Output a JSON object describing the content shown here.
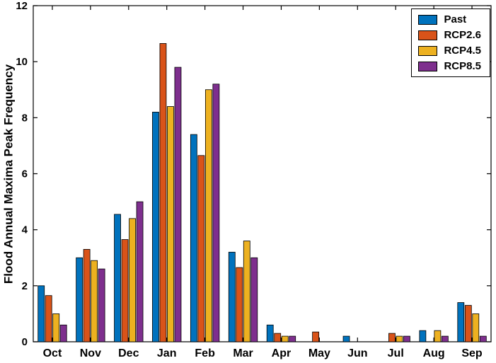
{
  "chart_data": {
    "type": "bar",
    "title": "",
    "xlabel": "",
    "ylabel": "Flood Annual Maxima Peak Frequency",
    "ylim": [
      0,
      12
    ],
    "yticks": [
      0,
      2,
      4,
      6,
      8,
      10,
      12
    ],
    "grid": false,
    "axis_color": "#000000",
    "background": "#ffffff",
    "legend": {
      "position": "top-right",
      "entries": [
        "Past",
        "RCP2.6",
        "RCP4.5",
        "RCP8.5"
      ]
    },
    "categories": [
      "Oct",
      "Nov",
      "Dec",
      "Jan",
      "Feb",
      "Mar",
      "Apr",
      "May",
      "Jun",
      "Jul",
      "Aug",
      "Sep"
    ],
    "series": [
      {
        "name": "Past",
        "color": "#0072BD",
        "values": [
          2.0,
          3.0,
          4.55,
          8.2,
          7.4,
          3.2,
          0.6,
          0,
          0.2,
          0,
          0.4,
          1.4
        ]
      },
      {
        "name": "RCP2.6",
        "color": "#D95319",
        "values": [
          1.65,
          3.3,
          3.65,
          10.65,
          6.65,
          2.65,
          0.3,
          0.35,
          0,
          0.3,
          0,
          1.3
        ]
      },
      {
        "name": "RCP4.5",
        "color": "#EDB120",
        "values": [
          1.0,
          2.9,
          4.4,
          8.4,
          9.0,
          3.6,
          0.2,
          0,
          0,
          0.2,
          0.4,
          1.0
        ]
      },
      {
        "name": "RCP8.5",
        "color": "#7E2F8E",
        "values": [
          0.6,
          2.6,
          5.0,
          9.8,
          9.2,
          3.0,
          0.2,
          0,
          0,
          0.2,
          0.2,
          0.2
        ]
      }
    ]
  }
}
